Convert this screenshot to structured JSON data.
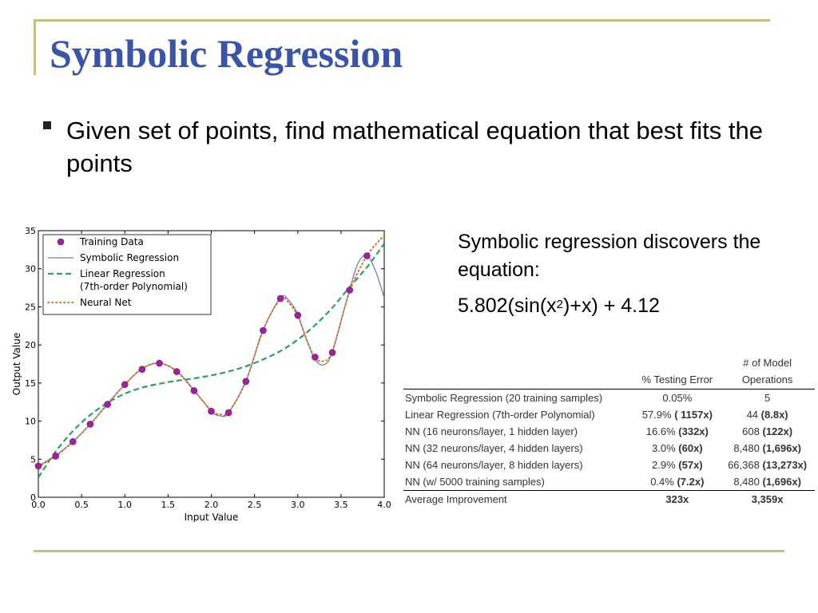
{
  "slide": {
    "title": "Symbolic Regression",
    "bullet": "Given set of points, find mathematical equation that best fits the points",
    "side_text": "Symbolic regression discovers the equation:",
    "equation": {
      "prefix": "5.802(sin(x",
      "sup": "2",
      "suffix": ")+x) + 4.12"
    }
  },
  "chart_data": {
    "type": "line",
    "xlabel": "Input Value",
    "ylabel": "Output Value",
    "xlim": [
      0,
      4
    ],
    "ylim": [
      0,
      35
    ],
    "xticks": [
      "0.0",
      "0.5",
      "1.0",
      "1.5",
      "2.0",
      "2.5",
      "3.0",
      "3.5",
      "4.0"
    ],
    "yticks": [
      "0",
      "5",
      "10",
      "15",
      "20",
      "25",
      "30",
      "35"
    ],
    "grid": false,
    "legend_position": "top-left",
    "colors": {
      "training": "#a020a0",
      "symbolic": "#7b7bb3",
      "linear": "#2e9e6b",
      "neural": "#d2691e"
    },
    "series": [
      {
        "name": "Training Data",
        "style": "markers",
        "x": [
          0.0,
          0.2,
          0.4,
          0.6,
          0.8,
          1.0,
          1.2,
          1.4,
          1.6,
          1.8,
          2.0,
          2.2,
          2.4,
          2.6,
          2.8,
          3.0,
          3.2,
          3.4,
          3.6,
          3.8
        ],
        "y": [
          4.1,
          5.4,
          7.3,
          9.6,
          12.2,
          14.8,
          16.8,
          17.6,
          16.5,
          14.0,
          11.3,
          11.1,
          15.2,
          21.9,
          26.1,
          23.9,
          18.4,
          19.0,
          27.2,
          31.7
        ]
      },
      {
        "name": "Symbolic Regression",
        "style": "solid",
        "x": [
          0.0,
          0.2,
          0.4,
          0.6,
          0.8,
          1.0,
          1.2,
          1.4,
          1.6,
          1.8,
          2.0,
          2.1,
          2.2,
          2.4,
          2.6,
          2.8,
          2.9,
          3.0,
          3.1,
          3.2,
          3.3,
          3.4,
          3.6,
          3.7,
          3.8,
          3.9,
          4.0
        ],
        "y": [
          4.1,
          5.5,
          7.3,
          9.6,
          12.3,
          14.8,
          16.9,
          17.6,
          16.6,
          14.1,
          11.3,
          10.7,
          11.1,
          15.3,
          21.9,
          26.2,
          25.8,
          24.0,
          20.7,
          18.1,
          17.4,
          19.1,
          27.3,
          30.8,
          31.7,
          29.7,
          26.2
        ]
      },
      {
        "name": "Linear Regression (7th-order Polynomial)",
        "style": "dashed",
        "x": [
          0.0,
          0.2,
          0.4,
          0.6,
          0.8,
          1.0,
          1.2,
          1.4,
          1.6,
          1.8,
          2.0,
          2.2,
          2.4,
          2.6,
          2.8,
          3.0,
          3.2,
          3.4,
          3.6,
          3.8,
          4.0
        ],
        "y": [
          2.6,
          6.0,
          8.7,
          10.8,
          12.4,
          13.6,
          14.4,
          14.9,
          15.3,
          15.6,
          16.0,
          16.5,
          17.2,
          18.1,
          19.2,
          20.7,
          22.6,
          24.9,
          27.6,
          30.2,
          33.3
        ]
      },
      {
        "name": "Neural Net",
        "style": "dotted",
        "x": [
          0.0,
          0.2,
          0.4,
          0.6,
          0.8,
          1.0,
          1.2,
          1.4,
          1.6,
          1.8,
          2.0,
          2.1,
          2.2,
          2.4,
          2.6,
          2.8,
          2.9,
          3.0,
          3.1,
          3.2,
          3.3,
          3.4,
          3.6,
          3.8,
          4.0
        ],
        "y": [
          4.0,
          5.4,
          7.3,
          9.6,
          12.2,
          14.8,
          16.9,
          17.6,
          16.5,
          14.0,
          11.4,
          10.9,
          11.2,
          15.2,
          22.0,
          26.0,
          25.5,
          23.8,
          20.8,
          18.3,
          17.9,
          19.2,
          27.0,
          31.7,
          34.4
        ]
      }
    ]
  },
  "results_table": {
    "headers": {
      "method": "",
      "error": "% Testing Error",
      "ops_line1": "# of Model",
      "ops_line2": "Operations"
    },
    "rows": [
      {
        "method": "Symbolic Regression (20 training samples)",
        "error": "0.05%",
        "error_factor": "",
        "ops": "5",
        "ops_factor": ""
      },
      {
        "method": "Linear Regression (7th-order Polynomial)",
        "error": "57.9%",
        "error_factor": "( 1157x)",
        "ops": "44",
        "ops_factor": "(8.8x)"
      },
      {
        "method": "NN (16 neurons/layer, 1 hidden layer)",
        "error": "16.6%",
        "error_factor": "(332x)",
        "ops": "608",
        "ops_factor": "(122x)"
      },
      {
        "method": "NN (32 neurons/layer, 4 hidden layers)",
        "error": "3.0%",
        "error_factor": "(60x)",
        "ops": "8,480",
        "ops_factor": "(1,696x)"
      },
      {
        "method": "NN (64 neurons/layer, 8 hidden layers)",
        "error": "2.9%",
        "error_factor": "(57x)",
        "ops": "66,368",
        "ops_factor": "(13,273x)"
      },
      {
        "method": "NN (w/ 5000 training samples)",
        "error": "0.4%",
        "error_factor": "(7.2x)",
        "ops": "8,480",
        "ops_factor": "(1,696x)"
      }
    ],
    "average": {
      "method": "Average Improvement",
      "error": "323x",
      "ops": "3,359x"
    }
  }
}
